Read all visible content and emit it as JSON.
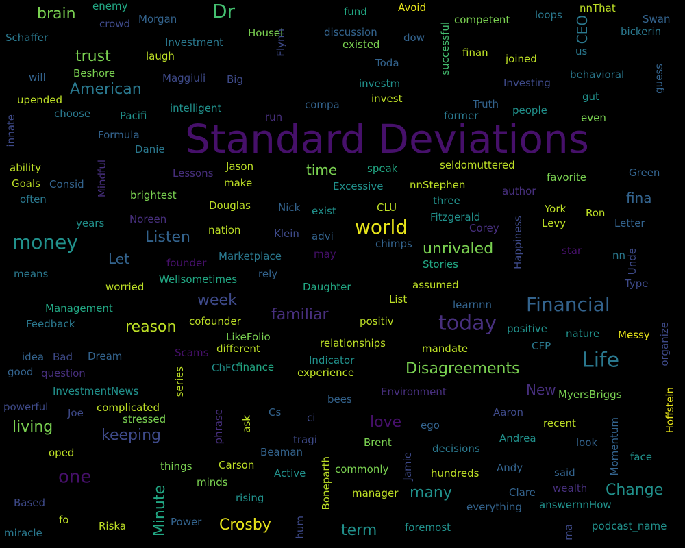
{
  "cloud": {
    "background": "#000000",
    "palette": {
      "purple": "#46106a",
      "violet": "#472f7d",
      "indigo": "#3e4a89",
      "slate": "#33638d",
      "steel": "#2a788e",
      "teal": "#21918c",
      "sea": "#22a884",
      "green": "#44bf70",
      "lime": "#7ad151",
      "chartreuse": "#bddf26",
      "yellow": "#e8e51a"
    },
    "words": [
      {
        "text": "Standard Deviations",
        "color": "purple"
      },
      {
        "text": "Financial",
        "color": "slate"
      },
      {
        "text": "Life",
        "color": "steel"
      },
      {
        "text": "today",
        "color": "violet"
      },
      {
        "text": "money",
        "color": "teal"
      },
      {
        "text": "world",
        "color": "yellow"
      },
      {
        "text": "Dr",
        "color": "green"
      },
      {
        "text": "one",
        "color": "purple"
      },
      {
        "text": "Disagreements",
        "color": "lime"
      },
      {
        "text": "unrivaled",
        "color": "lime"
      },
      {
        "text": "Change",
        "color": "teal"
      },
      {
        "text": "familiar",
        "color": "violet"
      },
      {
        "text": "living",
        "color": "lime"
      },
      {
        "text": "keeping",
        "color": "indigo"
      },
      {
        "text": "many",
        "color": "teal"
      },
      {
        "text": "Crosby",
        "color": "yellow"
      },
      {
        "text": "term",
        "color": "teal"
      },
      {
        "text": "love",
        "color": "purple"
      },
      {
        "text": "Minute",
        "color": "sea"
      },
      {
        "text": "reason",
        "color": "chartreuse"
      },
      {
        "text": "American",
        "color": "steel"
      },
      {
        "text": "trust",
        "color": "lime"
      },
      {
        "text": "brain",
        "color": "lime"
      },
      {
        "text": "week",
        "color": "indigo"
      },
      {
        "text": "Listen",
        "color": "slate"
      },
      {
        "text": "Let",
        "color": "slate"
      },
      {
        "text": "time",
        "color": "lime"
      },
      {
        "text": "New",
        "color": "violet"
      },
      {
        "text": "fina",
        "color": "slate"
      },
      {
        "text": "CEO",
        "color": "steel"
      },
      {
        "text": "enemy",
        "color": "sea"
      },
      {
        "text": "crowd",
        "color": "indigo"
      },
      {
        "text": "Morgan",
        "color": "slate"
      },
      {
        "text": "Schaffer",
        "color": "steel"
      },
      {
        "text": "Investment",
        "color": "steel"
      },
      {
        "text": "Housel",
        "color": "lime"
      },
      {
        "text": "discussion",
        "color": "slate"
      },
      {
        "text": "fund",
        "color": "sea"
      },
      {
        "text": "Avoid",
        "color": "yellow"
      },
      {
        "text": "competent",
        "color": "lime"
      },
      {
        "text": "loops",
        "color": "steel"
      },
      {
        "text": "nnThat",
        "color": "chartreuse"
      },
      {
        "text": "Swan",
        "color": "slate"
      },
      {
        "text": "bickerin",
        "color": "steel"
      },
      {
        "text": "existed",
        "color": "lime"
      },
      {
        "text": "dow",
        "color": "slate"
      },
      {
        "text": "laugh",
        "color": "chartreuse"
      },
      {
        "text": "will",
        "color": "slate"
      },
      {
        "text": "Beshore",
        "color": "lime"
      },
      {
        "text": "Maggiuli",
        "color": "indigo"
      },
      {
        "text": "Big",
        "color": "indigo"
      },
      {
        "text": "Flynn",
        "color": "indigo"
      },
      {
        "text": "Toda",
        "color": "slate"
      },
      {
        "text": "successful",
        "color": "green"
      },
      {
        "text": "finan",
        "color": "chartreuse"
      },
      {
        "text": "joined",
        "color": "chartreuse"
      },
      {
        "text": "us",
        "color": "steel"
      },
      {
        "text": "behavioral",
        "color": "steel"
      },
      {
        "text": "guess",
        "color": "slate"
      },
      {
        "text": "upended",
        "color": "chartreuse"
      },
      {
        "text": "investm",
        "color": "teal"
      },
      {
        "text": "Investing",
        "color": "indigo"
      },
      {
        "text": "gut",
        "color": "teal"
      },
      {
        "text": "choose",
        "color": "steel"
      },
      {
        "text": "intelligent",
        "color": "teal"
      },
      {
        "text": "compa",
        "color": "slate"
      },
      {
        "text": "invest",
        "color": "chartreuse"
      },
      {
        "text": "Truth",
        "color": "slate"
      },
      {
        "text": "people",
        "color": "teal"
      },
      {
        "text": "Pacifi",
        "color": "teal"
      },
      {
        "text": "run",
        "color": "violet"
      },
      {
        "text": "former",
        "color": "steel"
      },
      {
        "text": "even",
        "color": "lime"
      },
      {
        "text": "innate",
        "color": "indigo"
      },
      {
        "text": "Formula",
        "color": "slate"
      },
      {
        "text": "Danie",
        "color": "steel"
      },
      {
        "text": "ability",
        "color": "chartreuse"
      },
      {
        "text": "Mindful",
        "color": "violet"
      },
      {
        "text": "Lessons",
        "color": "violet"
      },
      {
        "text": "Jason",
        "color": "chartreuse"
      },
      {
        "text": "speak",
        "color": "sea"
      },
      {
        "text": "seldomuttered",
        "color": "chartreuse"
      },
      {
        "text": "Green",
        "color": "slate"
      },
      {
        "text": "Goals",
        "color": "chartreuse"
      },
      {
        "text": "Consid",
        "color": "slate"
      },
      {
        "text": "make",
        "color": "chartreuse"
      },
      {
        "text": "favorite",
        "color": "lime"
      },
      {
        "text": "Excessive",
        "color": "teal"
      },
      {
        "text": "nnStephen",
        "color": "chartreuse"
      },
      {
        "text": "author",
        "color": "violet"
      },
      {
        "text": "often",
        "color": "steel"
      },
      {
        "text": "brightest",
        "color": "lime"
      },
      {
        "text": "three",
        "color": "teal"
      },
      {
        "text": "Ron",
        "color": "chartreuse"
      },
      {
        "text": "Douglas",
        "color": "chartreuse"
      },
      {
        "text": "Nick",
        "color": "slate"
      },
      {
        "text": "exist",
        "color": "teal"
      },
      {
        "text": "CLU",
        "color": "chartreuse"
      },
      {
        "text": "York",
        "color": "chartreuse"
      },
      {
        "text": "Fitzgerald",
        "color": "teal"
      },
      {
        "text": "years",
        "color": "teal"
      },
      {
        "text": "Noreen",
        "color": "violet"
      },
      {
        "text": "Corey",
        "color": "violet"
      },
      {
        "text": "Levy",
        "color": "chartreuse"
      },
      {
        "text": "Letter",
        "color": "slate"
      },
      {
        "text": "nation",
        "color": "chartreuse"
      },
      {
        "text": "Klein",
        "color": "indigo"
      },
      {
        "text": "advi",
        "color": "slate"
      },
      {
        "text": "Happiness",
        "color": "indigo"
      },
      {
        "text": "chimps",
        "color": "slate"
      },
      {
        "text": "founder",
        "color": "purple"
      },
      {
        "text": "Marketplace",
        "color": "steel"
      },
      {
        "text": "may",
        "color": "purple"
      },
      {
        "text": "Stories",
        "color": "sea"
      },
      {
        "text": "star",
        "color": "purple"
      },
      {
        "text": "nn",
        "color": "steel"
      },
      {
        "text": "Unde",
        "color": "indigo"
      },
      {
        "text": "means",
        "color": "steel"
      },
      {
        "text": "Wellsometimes",
        "color": "sea"
      },
      {
        "text": "rely",
        "color": "slate"
      },
      {
        "text": "worried",
        "color": "chartreuse"
      },
      {
        "text": "Daughter",
        "color": "sea"
      },
      {
        "text": "assumed",
        "color": "chartreuse"
      },
      {
        "text": "Type",
        "color": "indigo"
      },
      {
        "text": "List",
        "color": "chartreuse"
      },
      {
        "text": "learnnn",
        "color": "slate"
      },
      {
        "text": "Management",
        "color": "sea"
      },
      {
        "text": "Feedback",
        "color": "steel"
      },
      {
        "text": "cofounder",
        "color": "chartreuse"
      },
      {
        "text": "positiv",
        "color": "chartreuse"
      },
      {
        "text": "positive",
        "color": "teal"
      },
      {
        "text": "organize",
        "color": "indigo"
      },
      {
        "text": "LikeFolio",
        "color": "lime"
      },
      {
        "text": "nature",
        "color": "teal"
      },
      {
        "text": "Messy",
        "color": "yellow"
      },
      {
        "text": "relationships",
        "color": "chartreuse"
      },
      {
        "text": "idea",
        "color": "slate"
      },
      {
        "text": "Bad",
        "color": "indigo"
      },
      {
        "text": "Dream",
        "color": "slate"
      },
      {
        "text": "Scams",
        "color": "purple"
      },
      {
        "text": "different",
        "color": "chartreuse"
      },
      {
        "text": "mandate",
        "color": "chartreuse"
      },
      {
        "text": "CFP",
        "color": "steel"
      },
      {
        "text": "Indicator",
        "color": "teal"
      },
      {
        "text": "good",
        "color": "slate"
      },
      {
        "text": "question",
        "color": "violet"
      },
      {
        "text": "finance",
        "color": "sea"
      },
      {
        "text": "experience",
        "color": "chartreuse"
      },
      {
        "text": "series",
        "color": "chartreuse"
      },
      {
        "text": "InvestmentNews",
        "color": "teal"
      },
      {
        "text": "ChFC",
        "color": "teal"
      },
      {
        "text": "Environment",
        "color": "violet"
      },
      {
        "text": "MyersBriggs",
        "color": "lime"
      },
      {
        "text": "Hoffstein",
        "color": "yellow"
      },
      {
        "text": "powerful",
        "color": "indigo"
      },
      {
        "text": "complicated",
        "color": "chartreuse"
      },
      {
        "text": "bees",
        "color": "slate"
      },
      {
        "text": "Joe",
        "color": "indigo"
      },
      {
        "text": "stressed",
        "color": "lime"
      },
      {
        "text": "Cs",
        "color": "slate"
      },
      {
        "text": "Aaron",
        "color": "indigo"
      },
      {
        "text": "phrase",
        "color": "violet"
      },
      {
        "text": "ask",
        "color": "chartreuse"
      },
      {
        "text": "ci",
        "color": "indigo"
      },
      {
        "text": "ego",
        "color": "slate"
      },
      {
        "text": "recent",
        "color": "chartreuse"
      },
      {
        "text": "Momentum",
        "color": "slate"
      },
      {
        "text": "tragi",
        "color": "indigo"
      },
      {
        "text": "Brent",
        "color": "lime"
      },
      {
        "text": "Andrea",
        "color": "teal"
      },
      {
        "text": "oped",
        "color": "chartreuse"
      },
      {
        "text": "Beaman",
        "color": "slate"
      },
      {
        "text": "Jamie",
        "color": "indigo"
      },
      {
        "text": "decisions",
        "color": "steel"
      },
      {
        "text": "look",
        "color": "slate"
      },
      {
        "text": "face",
        "color": "teal"
      },
      {
        "text": "things",
        "color": "lime"
      },
      {
        "text": "Carson",
        "color": "chartreuse"
      },
      {
        "text": "Active",
        "color": "teal"
      },
      {
        "text": "commonly",
        "color": "lime"
      },
      {
        "text": "Boneparth",
        "color": "chartreuse"
      },
      {
        "text": "Andy",
        "color": "slate"
      },
      {
        "text": "minds",
        "color": "lime"
      },
      {
        "text": "hundreds",
        "color": "chartreuse"
      },
      {
        "text": "said",
        "color": "slate"
      },
      {
        "text": "wealth",
        "color": "violet"
      },
      {
        "text": "Based",
        "color": "indigo"
      },
      {
        "text": "rising",
        "color": "teal"
      },
      {
        "text": "manager",
        "color": "chartreuse"
      },
      {
        "text": "Clare",
        "color": "slate"
      },
      {
        "text": "everything",
        "color": "slate"
      },
      {
        "text": "answernnHow",
        "color": "teal"
      },
      {
        "text": "fo",
        "color": "chartreuse"
      },
      {
        "text": "Power",
        "color": "slate"
      },
      {
        "text": "miracle",
        "color": "steel"
      },
      {
        "text": "Riska",
        "color": "chartreuse"
      },
      {
        "text": "hum",
        "color": "indigo"
      },
      {
        "text": "foremost",
        "color": "teal"
      },
      {
        "text": "ma",
        "color": "indigo"
      },
      {
        "text": "podcast_name",
        "color": "teal"
      }
    ]
  }
}
